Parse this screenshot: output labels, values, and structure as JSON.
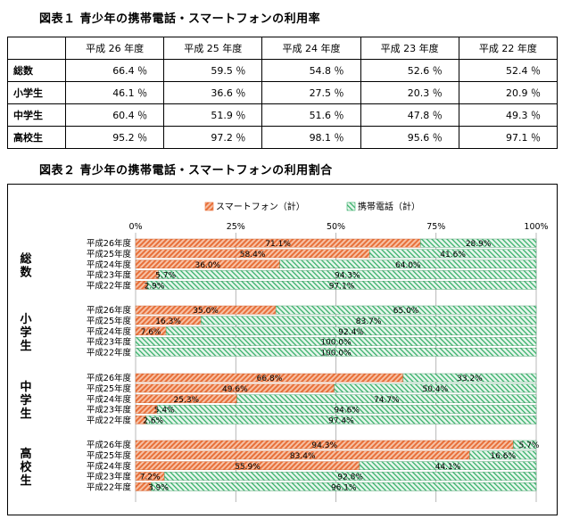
{
  "table1": {
    "title": "図表１ 青少年の携帯電話・スマートフォンの利用率",
    "columns": [
      "平成 26 年度",
      "平成 25 年度",
      "平成 24 年度",
      "平成 23 年度",
      "平成 22 年度"
    ],
    "rows": [
      {
        "label": "総数",
        "values": [
          "66.4 ％",
          "59.5 ％",
          "54.8 ％",
          "52.6 ％",
          "52.4 ％"
        ]
      },
      {
        "label": "小学生",
        "values": [
          "46.1 ％",
          "36.6 ％",
          "27.5 ％",
          "20.3 ％",
          "20.9 ％"
        ]
      },
      {
        "label": "中学生",
        "values": [
          "60.4 ％",
          "51.9 ％",
          "51.6 ％",
          "47.8 ％",
          "49.3 ％"
        ]
      },
      {
        "label": "高校生",
        "values": [
          "95.2 ％",
          "97.2 ％",
          "98.1 ％",
          "95.6 ％",
          "97.1 ％"
        ]
      }
    ]
  },
  "chart2_title": "図表２ 青少年の携帯電話・スマートフォンの利用割合",
  "colors": {
    "smartphone": "#e8703a",
    "mobile": "#38b06a"
  },
  "chart_data": {
    "type": "bar",
    "orientation": "horizontal",
    "stacked": true,
    "legend": {
      "position": "top",
      "entries": [
        "スマートフォン（計）",
        "携帯電話（計）"
      ]
    },
    "xlim": [
      0,
      100
    ],
    "xticks": [
      "0%",
      "25%",
      "50%",
      "75%",
      "100%"
    ],
    "grid": true,
    "years": [
      "平成26年度",
      "平成25年度",
      "平成24年度",
      "平成23年度",
      "平成22年度"
    ],
    "groups": [
      {
        "name": "総数",
        "smartphone": [
          71.1,
          58.4,
          36.0,
          5.7,
          2.9
        ],
        "mobile": [
          28.9,
          41.6,
          64.0,
          94.3,
          97.1
        ],
        "smartphone_labels": [
          "71.1%",
          "58.4%",
          "36.0%",
          "5.7%",
          "2.9%"
        ],
        "mobile_labels": [
          "28.9%",
          "41.6%",
          "64.0%",
          "94.3%",
          "97.1%"
        ]
      },
      {
        "name": "小学生",
        "smartphone": [
          35.0,
          16.3,
          7.6,
          0,
          0
        ],
        "mobile": [
          65.0,
          83.7,
          92.4,
          100.0,
          100.0
        ],
        "smartphone_labels": [
          "35.0%",
          "16.3%",
          "7.6%",
          "",
          ""
        ],
        "mobile_labels": [
          "65.0%",
          "83.7%",
          "92.4%",
          "100.0%",
          "100.0%"
        ]
      },
      {
        "name": "中学生",
        "smartphone": [
          66.8,
          49.6,
          25.3,
          5.4,
          2.6
        ],
        "mobile": [
          33.2,
          50.4,
          74.7,
          94.6,
          97.4
        ],
        "smartphone_labels": [
          "66.8%",
          "49.6%",
          "25.3%",
          "5.4%",
          "2.6%"
        ],
        "mobile_labels": [
          "33.2%",
          "50.4%",
          "74.7%",
          "94.6%",
          "97.4%"
        ]
      },
      {
        "name": "高校生",
        "smartphone": [
          94.3,
          83.4,
          55.9,
          7.2,
          3.9
        ],
        "mobile": [
          5.7,
          16.6,
          44.1,
          92.8,
          96.1
        ],
        "smartphone_labels": [
          "94.3%",
          "83.4%",
          "55.9%",
          "7.2%",
          "3.9%"
        ],
        "mobile_labels": [
          "5.7%",
          "16.6%",
          "44.1%",
          "92.8%",
          "96.1%"
        ]
      }
    ]
  }
}
